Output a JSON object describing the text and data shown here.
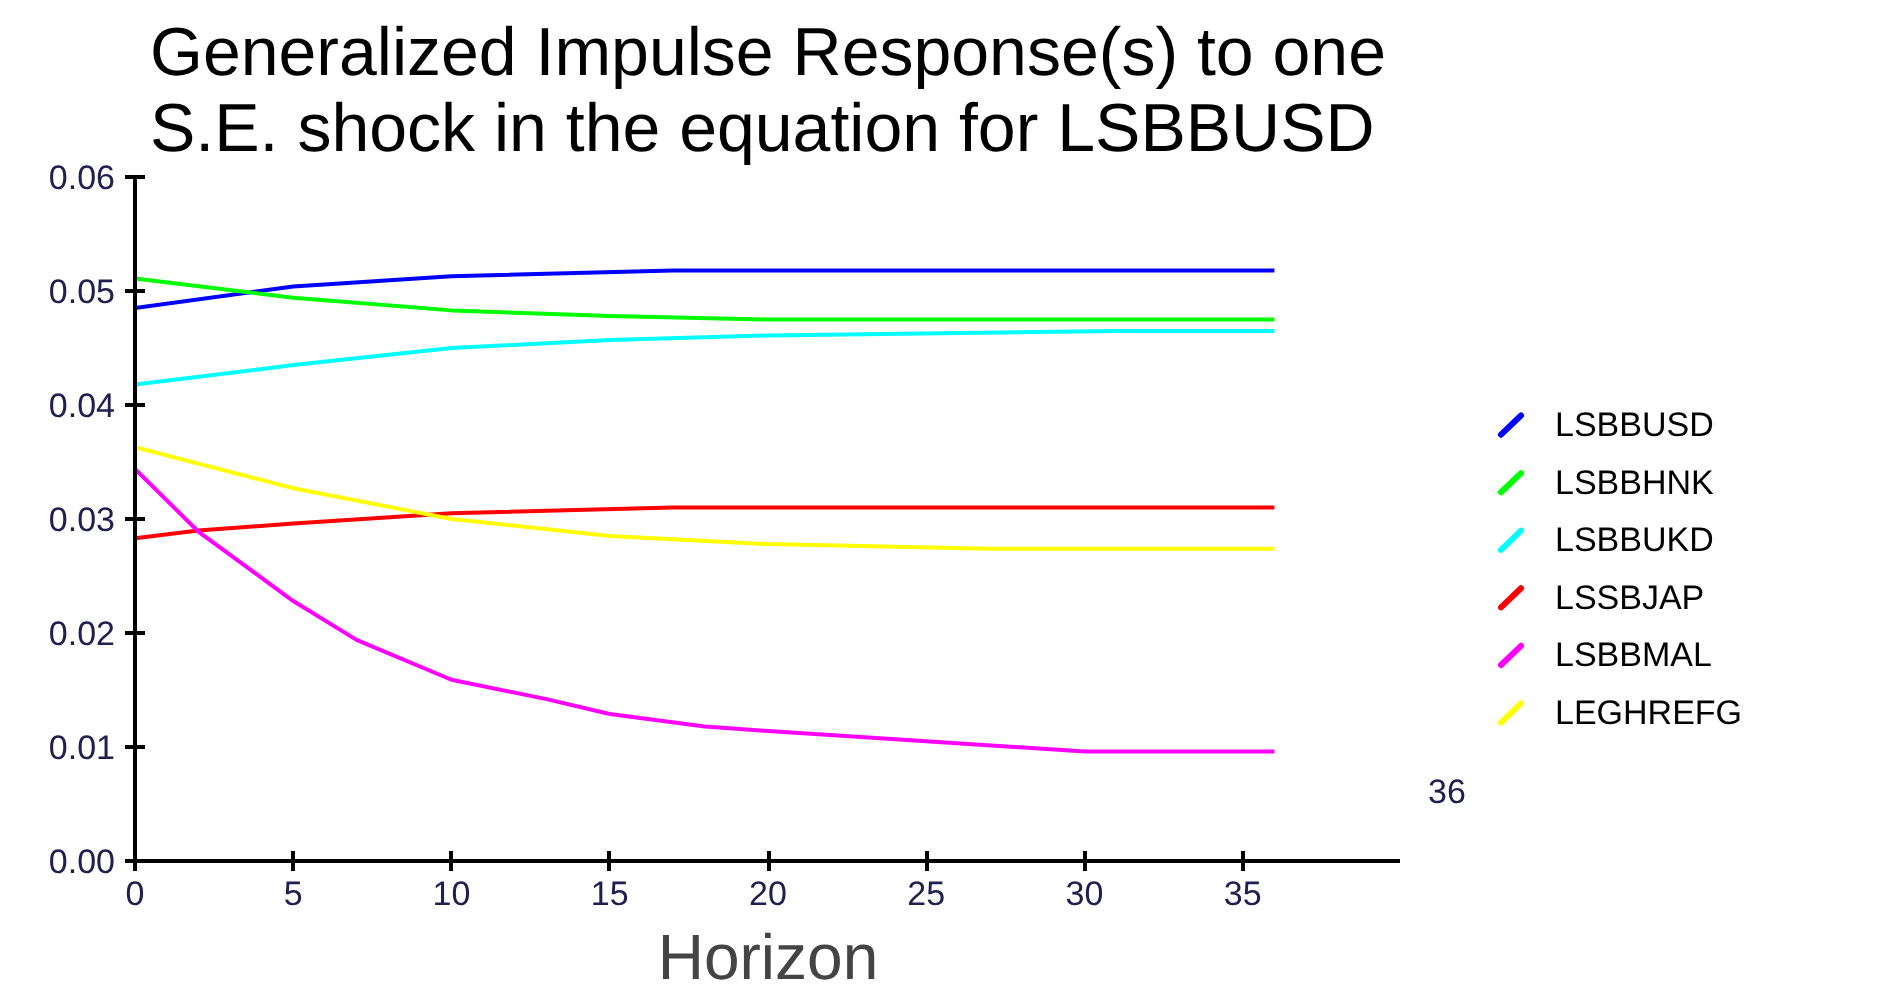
{
  "chart_data": {
    "type": "line",
    "title": "Generalized Impulse Response(s) to one\nS.E. shock in the equation for LSBBUSD",
    "xlabel": "Horizon",
    "xlim": [
      0,
      40
    ],
    "xticks": [
      0,
      5,
      10,
      15,
      20,
      25,
      30,
      35
    ],
    "annotations": [
      "36"
    ],
    "ylim": [
      0,
      0.06
    ],
    "yticks": [
      {
        "value": 0,
        "label": "0.00"
      },
      {
        "value": 0.01,
        "label": "0.01"
      },
      {
        "value": 0.02,
        "label": "0.02"
      },
      {
        "value": 0.03,
        "label": "0.03"
      },
      {
        "value": 0.04,
        "label": "0.04"
      },
      {
        "value": 0.05,
        "label": "0.05"
      },
      {
        "value": 0.06,
        "label": "0.06"
      }
    ],
    "grid": false,
    "legend": "right",
    "marker": "none",
    "line_style": "solid",
    "series": [
      {
        "name": "LSBBUSD",
        "color": "#0000ff",
        "x": [
          0,
          5,
          10,
          17,
          36
        ],
        "values": [
          0.0485,
          0.0504,
          0.0513,
          0.0518,
          0.0518
        ]
      },
      {
        "name": "LSBBHNK",
        "color": "#00ff00",
        "x": [
          0,
          5,
          10,
          15,
          20,
          36
        ],
        "values": [
          0.0511,
          0.0494,
          0.0483,
          0.0478,
          0.0475,
          0.0475
        ]
      },
      {
        "name": "LSBBUKD",
        "color": "#00ffff",
        "x": [
          0,
          5,
          10,
          15,
          20,
          31,
          36
        ],
        "values": [
          0.0418,
          0.0435,
          0.045,
          0.0457,
          0.0461,
          0.0465,
          0.0465
        ]
      },
      {
        "name": "LSSBJAP",
        "color": "#ff0000",
        "x": [
          0,
          2,
          5,
          10,
          17,
          36
        ],
        "values": [
          0.0283,
          0.029,
          0.0296,
          0.0305,
          0.031,
          0.031
        ]
      },
      {
        "name": "LSBBMAL",
        "color": "#ff00ff",
        "x": [
          0,
          2,
          5,
          7,
          10,
          13,
          15,
          18,
          20,
          25,
          30,
          36
        ],
        "values": [
          0.0344,
          0.0289,
          0.0228,
          0.0194,
          0.0159,
          0.0142,
          0.0129,
          0.0118,
          0.0114,
          0.0105,
          0.0096,
          0.0096
        ]
      },
      {
        "name": "LEGHREFG",
        "color": "#ffff00",
        "x": [
          0,
          5,
          10,
          15,
          20,
          27,
          36
        ],
        "values": [
          0.0363,
          0.0327,
          0.03,
          0.0285,
          0.0278,
          0.0274,
          0.0274
        ]
      }
    ]
  }
}
